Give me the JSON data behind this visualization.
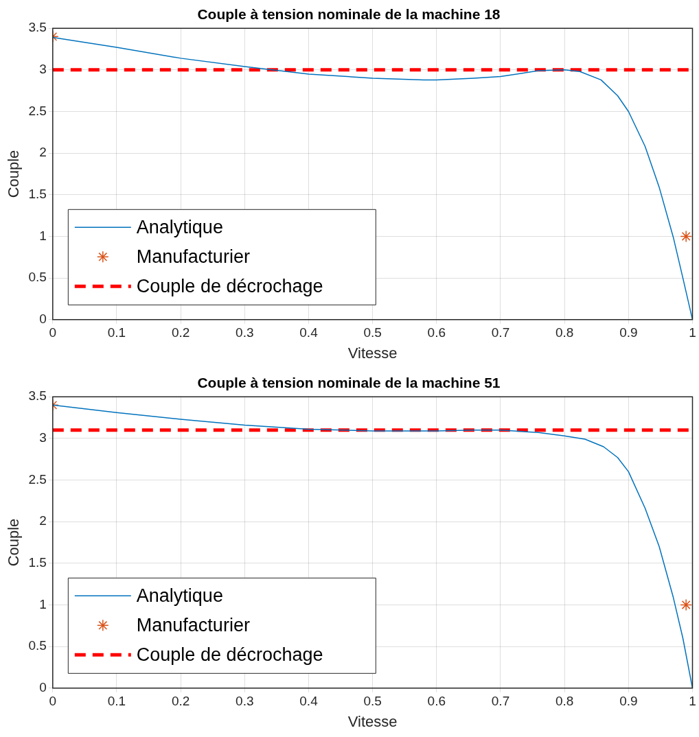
{
  "chart_data": [
    {
      "type": "line",
      "title": "Couple à tension nominale de la machine 18",
      "xlabel": "Vitesse",
      "ylabel": "Couple",
      "xlim": [
        0,
        1
      ],
      "xticks": [
        0,
        0.1,
        0.2,
        0.3,
        0.4,
        0.5,
        0.6,
        0.7,
        0.8,
        0.9,
        1
      ],
      "ylim": [
        0,
        3.5
      ],
      "yticks": [
        0,
        0.5,
        1,
        1.5,
        2,
        2.5,
        3,
        3.5
      ],
      "grid": true,
      "legend": "bottom left",
      "series": [
        {
          "name": "Analytique",
          "type": "line",
          "color": "#0072bd",
          "marker": "none",
          "line_style": "solid",
          "x": [
            0,
            0.1,
            0.2,
            0.3,
            0.4,
            0.5,
            0.58,
            0.6,
            0.658,
            0.7,
            0.759,
            0.8,
            0.824,
            0.857,
            0.883,
            0.9,
            0.926,
            0.948,
            0.97,
            0.985,
            1
          ],
          "values": [
            3.39,
            3.27,
            3.14,
            3.04,
            2.95,
            2.9,
            2.88,
            2.88,
            2.9,
            2.92,
            2.99,
            3.0,
            2.98,
            2.88,
            2.69,
            2.5,
            2.08,
            1.59,
            0.99,
            0.5,
            0
          ]
        },
        {
          "name": "Manufacturier",
          "type": "scatter",
          "color": "#d95319",
          "marker": "cross",
          "x": [
            0,
            0.99
          ],
          "values": [
            3.4,
            1
          ]
        },
        {
          "name": "Couple de décrochage",
          "type": "line",
          "color": "#ff0000",
          "marker": "none",
          "line_style": "dashed",
          "x": [
            0,
            1
          ],
          "values": [
            3,
            3
          ]
        }
      ]
    },
    {
      "type": "line",
      "title": "Couple à tension nominale de la machine 51",
      "xlabel": "Vitesse",
      "ylabel": "Couple",
      "xlim": [
        0,
        1
      ],
      "xticks": [
        0,
        0.1,
        0.2,
        0.3,
        0.4,
        0.5,
        0.6,
        0.7,
        0.8,
        0.9,
        1
      ],
      "ylim": [
        0,
        3.5
      ],
      "yticks": [
        0,
        0.5,
        1,
        1.5,
        2,
        2.5,
        3,
        3.5
      ],
      "grid": true,
      "legend": "bottom left",
      "series": [
        {
          "name": "Analytique",
          "type": "line",
          "color": "#0072bd",
          "marker": "none",
          "line_style": "solid",
          "x": [
            0,
            0.1,
            0.2,
            0.3,
            0.4,
            0.5,
            0.6,
            0.658,
            0.7,
            0.759,
            0.8,
            0.832,
            0.861,
            0.883,
            0.9,
            0.926,
            0.948,
            0.97,
            0.985,
            1
          ],
          "values": [
            3.4,
            3.31,
            3.23,
            3.16,
            3.11,
            3.09,
            3.09,
            3.1,
            3.1,
            3.07,
            3.03,
            2.99,
            2.9,
            2.77,
            2.6,
            2.16,
            1.7,
            1.09,
            0.6,
            0
          ]
        },
        {
          "name": "Manufacturier",
          "type": "scatter",
          "color": "#d95319",
          "marker": "cross",
          "x": [
            0,
            0.99
          ],
          "values": [
            3.4,
            1
          ]
        },
        {
          "name": "Couple de décrochage",
          "type": "line",
          "color": "#ff0000",
          "marker": "none",
          "line_style": "dashed",
          "x": [
            0,
            1
          ],
          "values": [
            3.1,
            3.1
          ]
        }
      ]
    }
  ]
}
